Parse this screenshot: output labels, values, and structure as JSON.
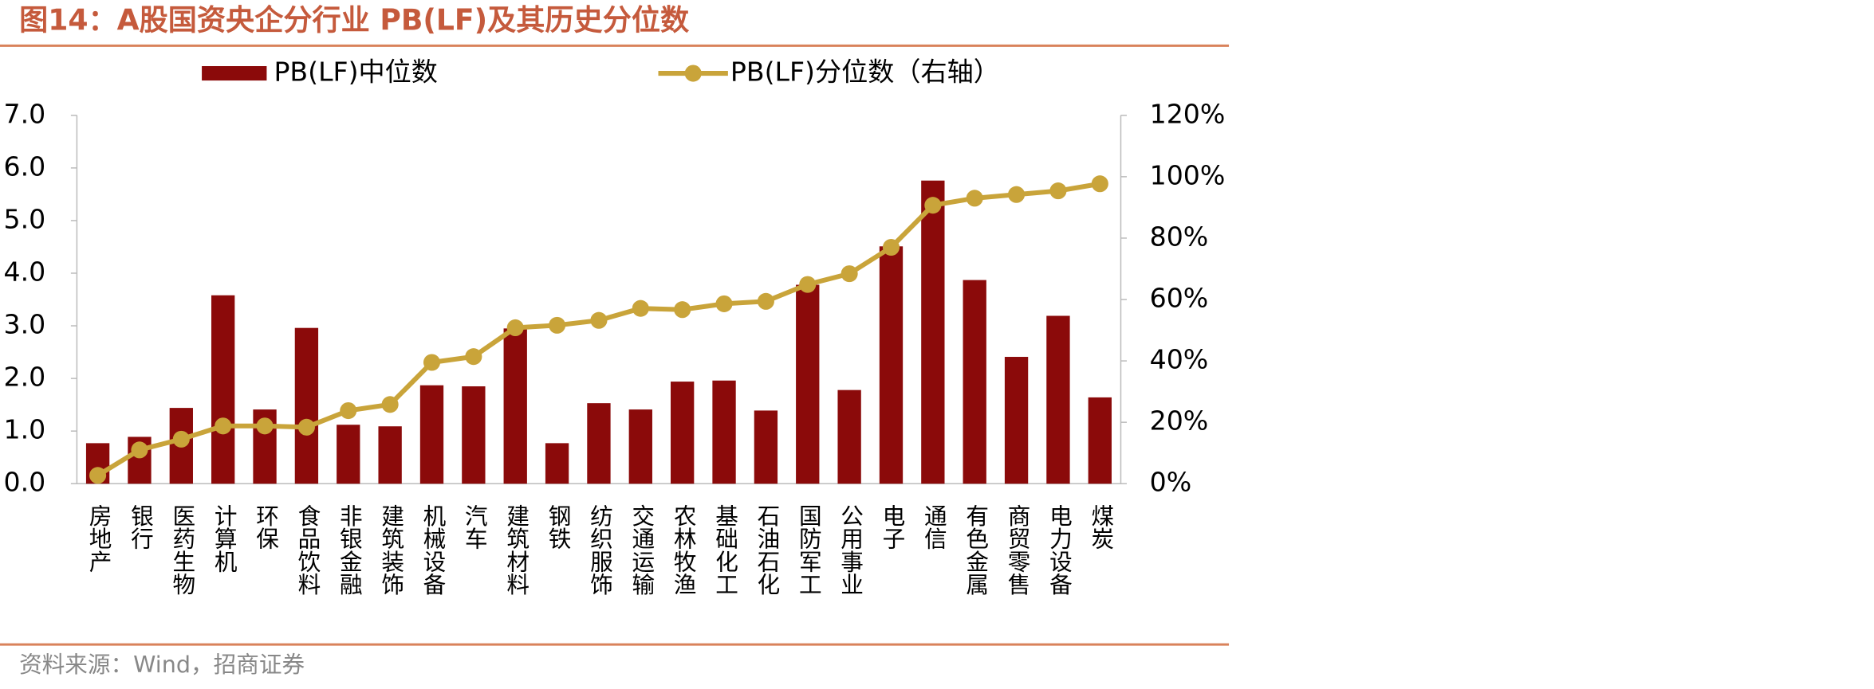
{
  "chart_data": {
    "type": "bar_line",
    "title": "图14：A股国资央企分行业 PB(LF)及其历史分位数",
    "source": "资料来源：Wind，招商证券",
    "categories": [
      "房地产",
      "银行",
      "医药生物",
      "计算机",
      "环保",
      "食品饮料",
      "非银金融",
      "建筑装饰",
      "机械设备",
      "汽车",
      "建筑材料",
      "钢铁",
      "纺织服饰",
      "交通运输",
      "农林牧渔",
      "基础化工",
      "石油石化",
      "国防军工",
      "公用事业",
      "电子",
      "通信",
      "有色金属",
      "商贸零售",
      "电力设备",
      "煤炭"
    ],
    "series": [
      {
        "name": "PB(LF)中位数",
        "type": "bar",
        "color": "#8b0a0a",
        "values": [
          0.77,
          0.89,
          1.44,
          3.58,
          1.41,
          2.96,
          1.12,
          1.09,
          1.87,
          1.85,
          2.95,
          0.77,
          1.53,
          1.41,
          1.94,
          1.96,
          1.39,
          3.78,
          1.78,
          4.51,
          5.76,
          3.87,
          2.41,
          3.19,
          1.64
        ]
      },
      {
        "name": "PB(LF)分位数（右轴）",
        "type": "line",
        "axis": "y2",
        "color": "#c9a43a",
        "values": [
          2.7,
          11,
          14.5,
          18.8,
          18.8,
          18.4,
          23.8,
          25.8,
          39.5,
          41.4,
          50.8,
          51.6,
          53.2,
          57.1,
          56.7,
          58.6,
          59.4,
          64.9,
          68.4,
          77,
          90.7,
          93,
          94.2,
          95.4,
          97.7
        ]
      }
    ],
    "ylim": [
      0,
      7
    ],
    "yticks": [
      {
        "value": 0,
        "label": "0.0"
      },
      {
        "value": 1,
        "label": "1.0"
      },
      {
        "value": 2,
        "label": "2.0"
      },
      {
        "value": 3,
        "label": "3.0"
      },
      {
        "value": 4,
        "label": "4.0"
      },
      {
        "value": 5,
        "label": "5.0"
      },
      {
        "value": 6,
        "label": "6.0"
      },
      {
        "value": 7,
        "label": "7.0"
      }
    ],
    "y2lim": [
      0,
      120
    ],
    "y2ticks": [
      {
        "value": 0,
        "label": "0%"
      },
      {
        "value": 20,
        "label": "20%"
      },
      {
        "value": 40,
        "label": "40%"
      },
      {
        "value": 60,
        "label": "60%"
      },
      {
        "value": 80,
        "label": "80%"
      },
      {
        "value": 100,
        "label": "100%"
      },
      {
        "value": 120,
        "label": "120%"
      }
    ],
    "legend": "top"
  }
}
